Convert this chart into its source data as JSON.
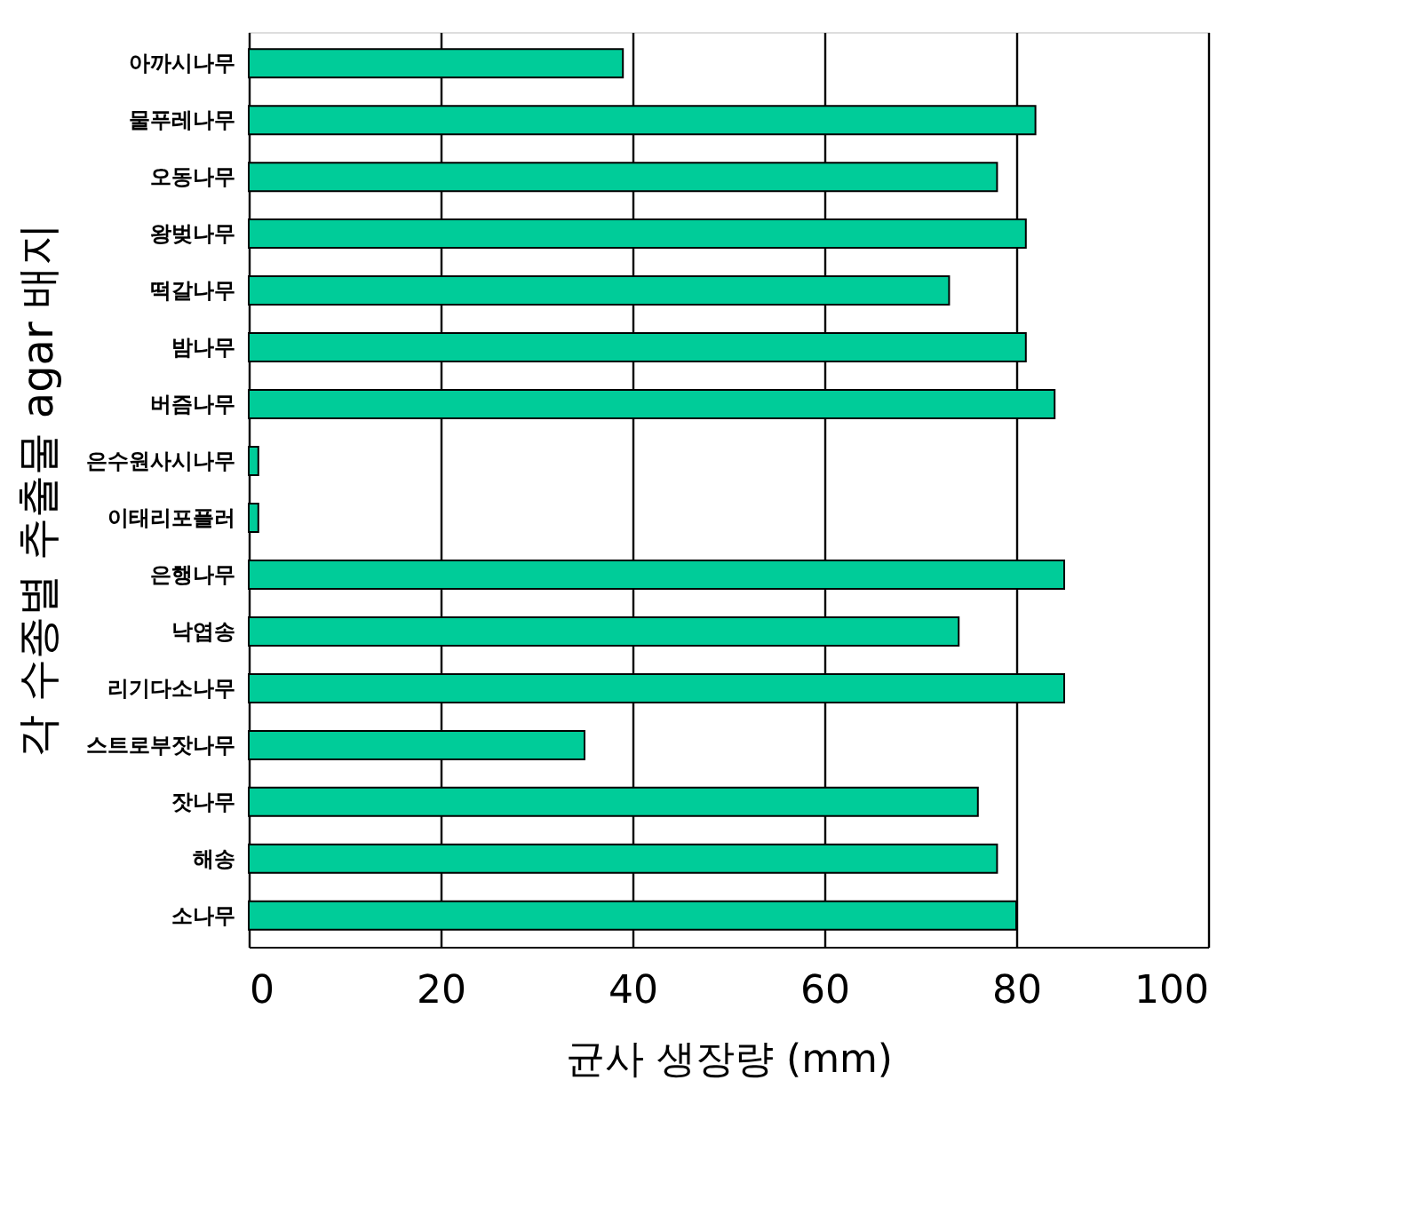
{
  "chart_data": {
    "type": "bar",
    "orientation": "horizontal",
    "categories": [
      "아까시나무",
      "물푸레나무",
      "오동나무",
      "왕벚나무",
      "떡갈나무",
      "밤나무",
      "버즘나무",
      "은수원사시나무",
      "이태리포플러",
      "은행나무",
      "낙엽송",
      "리기다소나무",
      "스트로부잣나무",
      "잣나무",
      "해송",
      "소나무"
    ],
    "values": [
      39,
      82,
      78,
      81,
      73,
      81,
      84,
      1,
      1,
      85,
      74,
      85,
      35,
      76,
      78,
      80
    ],
    "color": "#00cc99",
    "xlabel": "균사 생장량 (mm)",
    "ylabel": "각 수종별 추출물 agar 배지",
    "xlim": [
      0,
      100
    ],
    "xticks": [
      0,
      20,
      40,
      60,
      80,
      100
    ],
    "grid": "x"
  }
}
